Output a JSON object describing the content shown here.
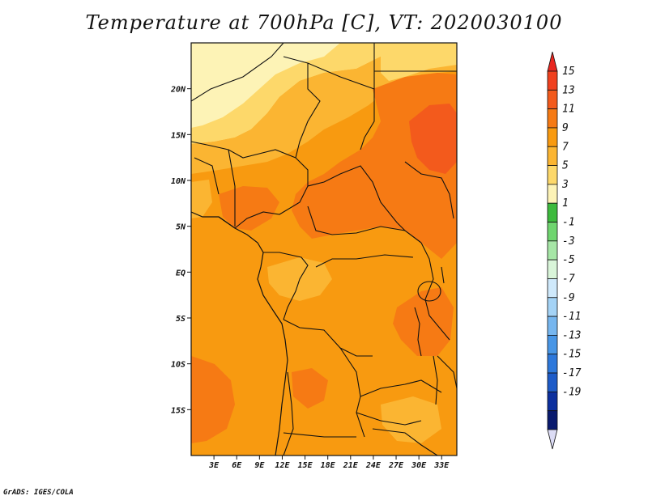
{
  "title": "Temperature at 700hPa [C], VT: 2020030100",
  "credit": "GrADS: IGES/COLA",
  "map": {
    "lon_range": [
      0,
      35
    ],
    "lat_range": [
      -20,
      25
    ],
    "lon_ticks": [
      {
        "value": 3,
        "label": "3E"
      },
      {
        "value": 6,
        "label": "6E"
      },
      {
        "value": 9,
        "label": "9E"
      },
      {
        "value": 12,
        "label": "12E"
      },
      {
        "value": 15,
        "label": "15E"
      },
      {
        "value": 18,
        "label": "18E"
      },
      {
        "value": 21,
        "label": "21E"
      },
      {
        "value": 24,
        "label": "24E"
      },
      {
        "value": 27,
        "label": "27E"
      },
      {
        "value": 30,
        "label": "30E"
      },
      {
        "value": 33,
        "label": "33E"
      }
    ],
    "lat_ticks": [
      {
        "value": 20,
        "label": "20N"
      },
      {
        "value": 15,
        "label": "15N"
      },
      {
        "value": 10,
        "label": "10N"
      },
      {
        "value": 5,
        "label": "5N"
      },
      {
        "value": 0,
        "label": "EQ"
      },
      {
        "value": -5,
        "label": "5S"
      },
      {
        "value": -10,
        "label": "10S"
      },
      {
        "value": -15,
        "label": "15S"
      }
    ]
  },
  "colorbar": {
    "top_color": "#e8261f",
    "bottom_color": "#dcdcf5",
    "bins": [
      {
        "label": "15",
        "color": "#f0401e"
      },
      {
        "label": "13",
        "color": "#f35a1c"
      },
      {
        "label": "11",
        "color": "#f67a14"
      },
      {
        "label": "9",
        "color": "#f89a10"
      },
      {
        "label": "7",
        "color": "#fbb532"
      },
      {
        "label": "5",
        "color": "#fdd86a"
      },
      {
        "label": "3",
        "color": "#fdf3b6"
      },
      {
        "label": "1",
        "color": "#3dba3d"
      },
      {
        "label": "-1",
        "color": "#6fd56f"
      },
      {
        "label": "-3",
        "color": "#a6e6a6"
      },
      {
        "label": "-5",
        "color": "#d9f5d9"
      },
      {
        "label": "-7",
        "color": "#cfe9fb"
      },
      {
        "label": "-9",
        "color": "#a4d3f6"
      },
      {
        "label": "-11",
        "color": "#76b6ef"
      },
      {
        "label": "-13",
        "color": "#4896e6"
      },
      {
        "label": "-15",
        "color": "#2d78db"
      },
      {
        "label": "-17",
        "color": "#1d5bc8"
      },
      {
        "label": "-19",
        "color": "#0c2f9e"
      },
      {
        "label": "",
        "color": "#091a6e"
      }
    ]
  }
}
